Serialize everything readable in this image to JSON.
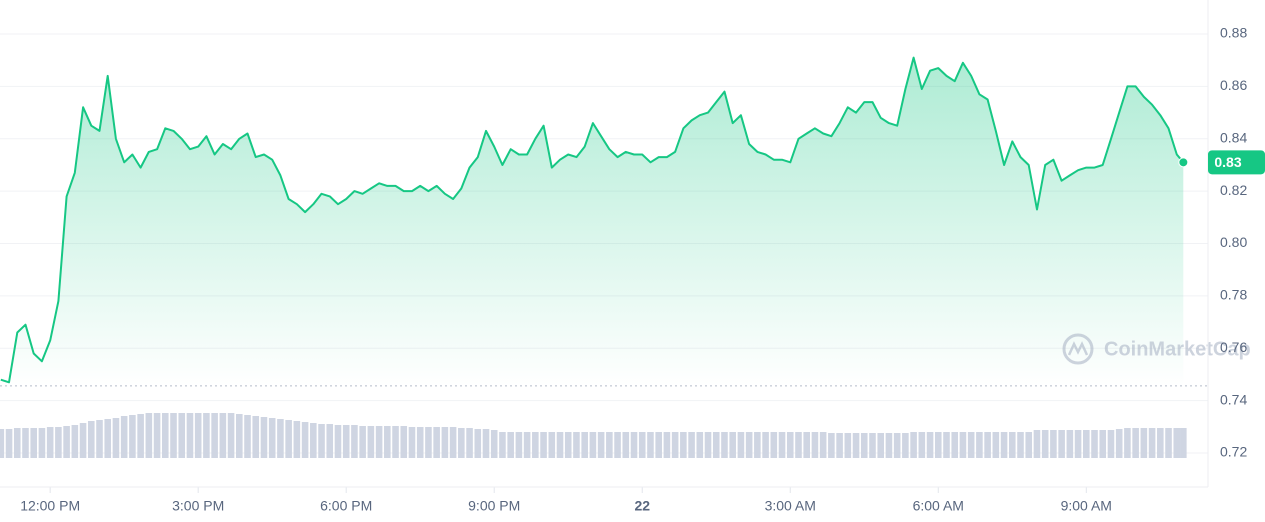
{
  "chart_data": {
    "type": "line",
    "x": [
      660,
      670,
      680,
      690,
      700,
      710,
      720,
      730,
      740,
      750,
      760,
      770,
      780,
      790,
      800,
      810,
      820,
      830,
      840,
      850,
      860,
      870,
      880,
      890,
      900,
      910,
      920,
      930,
      940,
      950,
      960,
      970,
      980,
      990,
      1000,
      1010,
      1020,
      1030,
      1040,
      1050,
      1060,
      1070,
      1080,
      1090,
      1100,
      1110,
      1120,
      1130,
      1140,
      1150,
      1160,
      1170,
      1180,
      1190,
      1200,
      1210,
      1220,
      1230,
      1240,
      1250,
      1260,
      1270,
      1280,
      1290,
      1300,
      1310,
      1320,
      1330,
      1340,
      1350,
      1360,
      1370,
      1380,
      1390,
      1400,
      1410,
      1420,
      1430,
      1440,
      1450,
      1460,
      1470,
      1480,
      1490,
      1500,
      1510,
      1520,
      1530,
      1540,
      1550,
      1560,
      1570,
      1580,
      1590,
      1600,
      1610,
      1620,
      1630,
      1640,
      1650,
      1660,
      1670,
      1680,
      1690,
      1700,
      1710,
      1720,
      1730,
      1740,
      1750,
      1760,
      1770,
      1780,
      1790,
      1800,
      1810,
      1820,
      1830,
      1840,
      1850,
      1860,
      1870,
      1880,
      1890,
      1900,
      1910,
      1920,
      1930,
      1940,
      1950,
      1960,
      1970,
      1980,
      1990,
      2000,
      2010,
      2020,
      2030,
      2040,
      2050,
      2060,
      2070,
      2080,
      2090,
      2098
    ],
    "values": [
      0.748,
      0.747,
      0.766,
      0.769,
      0.758,
      0.755,
      0.763,
      0.778,
      0.818,
      0.827,
      0.852,
      0.845,
      0.843,
      0.864,
      0.84,
      0.831,
      0.834,
      0.829,
      0.835,
      0.836,
      0.844,
      0.843,
      0.84,
      0.836,
      0.837,
      0.841,
      0.834,
      0.838,
      0.836,
      0.84,
      0.842,
      0.833,
      0.834,
      0.832,
      0.826,
      0.817,
      0.815,
      0.812,
      0.815,
      0.819,
      0.818,
      0.815,
      0.817,
      0.82,
      0.819,
      0.821,
      0.823,
      0.822,
      0.822,
      0.82,
      0.82,
      0.822,
      0.82,
      0.822,
      0.819,
      0.817,
      0.821,
      0.829,
      0.833,
      0.843,
      0.837,
      0.83,
      0.836,
      0.834,
      0.834,
      0.84,
      0.845,
      0.829,
      0.832,
      0.834,
      0.833,
      0.837,
      0.846,
      0.841,
      0.836,
      0.833,
      0.835,
      0.834,
      0.834,
      0.831,
      0.833,
      0.833,
      0.835,
      0.844,
      0.847,
      0.849,
      0.85,
      0.854,
      0.858,
      0.846,
      0.849,
      0.838,
      0.835,
      0.834,
      0.832,
      0.832,
      0.831,
      0.84,
      0.842,
      0.844,
      0.842,
      0.841,
      0.846,
      0.852,
      0.85,
      0.854,
      0.854,
      0.848,
      0.846,
      0.845,
      0.859,
      0.871,
      0.859,
      0.866,
      0.867,
      0.864,
      0.862,
      0.869,
      0.864,
      0.857,
      0.855,
      0.843,
      0.83,
      0.839,
      0.833,
      0.83,
      0.813,
      0.83,
      0.832,
      0.824,
      0.826,
      0.828,
      0.829,
      0.829,
      0.83,
      0.84,
      0.85,
      0.86,
      0.86,
      0.856,
      0.853,
      0.849,
      0.844,
      0.834,
      0.831
    ],
    "volume": [
      29,
      29,
      30,
      30,
      30,
      30,
      31,
      31,
      32,
      33,
      35,
      37,
      38,
      39,
      40,
      42,
      43,
      44,
      45,
      45,
      45,
      45,
      45,
      45,
      45,
      45,
      45,
      45,
      45,
      44,
      43,
      42,
      41,
      40,
      39,
      38,
      37,
      36,
      35,
      34,
      34,
      33,
      33,
      33,
      32,
      32,
      32,
      32,
      32,
      32,
      31,
      31,
      31,
      31,
      31,
      31,
      30,
      30,
      29,
      29,
      28,
      26,
      26,
      26,
      26,
      26,
      26,
      26,
      26,
      26,
      26,
      26,
      26,
      26,
      26,
      26,
      26,
      26,
      26,
      26,
      26,
      26,
      26,
      26,
      26,
      26,
      26,
      26,
      26,
      26,
      26,
      26,
      26,
      26,
      26,
      26,
      26,
      26,
      26,
      26,
      26,
      25,
      25,
      25,
      25,
      25,
      25,
      25,
      25,
      25,
      25,
      26,
      26,
      26,
      26,
      26,
      26,
      26,
      26,
      26,
      26,
      26,
      26,
      26,
      26,
      26,
      28,
      28,
      28,
      28,
      28,
      28,
      28,
      28,
      28,
      28,
      29,
      30,
      30,
      30,
      30,
      30,
      30,
      30,
      30
    ],
    "color": "#16c784",
    "volume_color": "#cfd5e2",
    "xlim": [
      659,
      2128
    ],
    "xticks": [
      {
        "value": 720,
        "label": "12:00 PM"
      },
      {
        "value": 900,
        "label": "3:00 PM"
      },
      {
        "value": 1080,
        "label": "6:00 PM"
      },
      {
        "value": 1260,
        "label": "9:00 PM"
      },
      {
        "value": 1440,
        "label": "22"
      },
      {
        "value": 1620,
        "label": "3:00 AM"
      },
      {
        "value": 1800,
        "label": "6:00 AM"
      },
      {
        "value": 1980,
        "label": "9:00 AM"
      }
    ],
    "ylim": [
      0.707,
      0.893
    ],
    "yticks": [
      0.72,
      0.74,
      0.76,
      0.78,
      {
        "value": 0.8,
        "label": "0.80"
      },
      0.82,
      0.84,
      0.86,
      0.88
    ],
    "reference_line": 0.7456,
    "price_tag": "0.83",
    "watermark": "CoinMarketCap",
    "grid": true
  }
}
